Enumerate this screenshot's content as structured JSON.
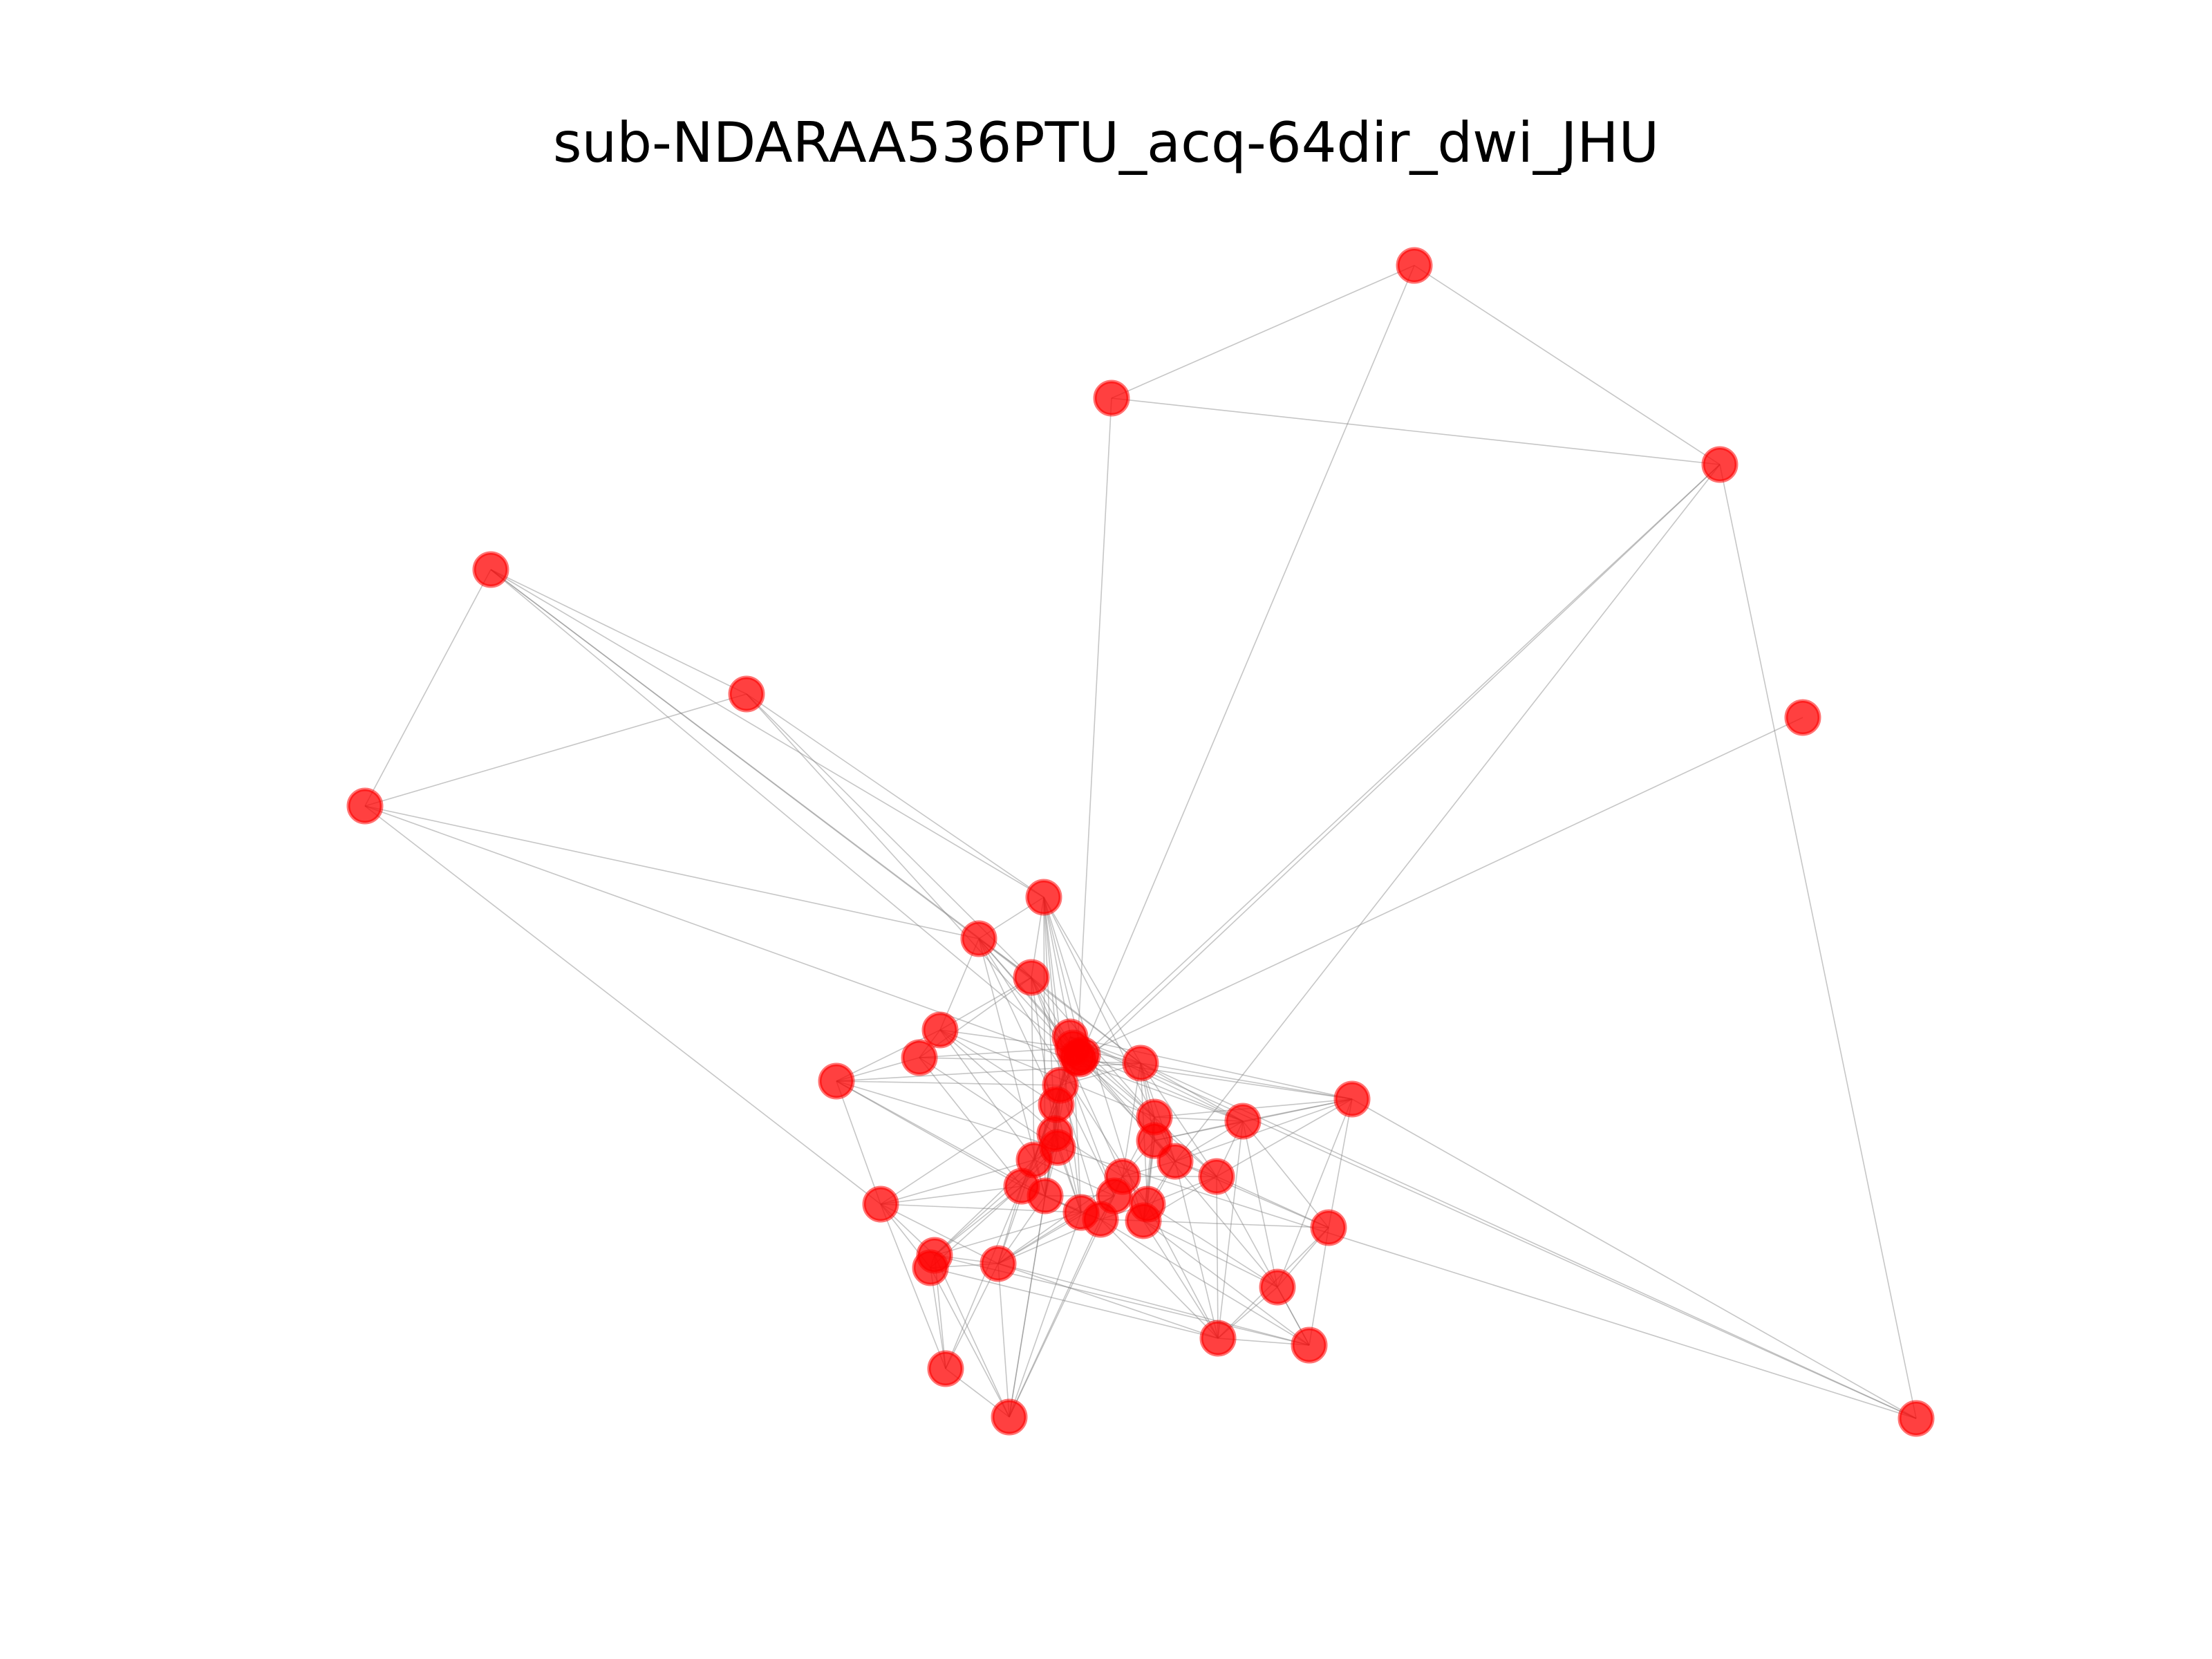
{
  "figure": {
    "title": "sub-NDARAA536PTU_acq-64dir_dwi_JHU"
  },
  "style": {
    "node_fill": "#ff0000",
    "node_opacity": 0.75,
    "edge_color": "#808080",
    "background": "#ffffff"
  }
}
